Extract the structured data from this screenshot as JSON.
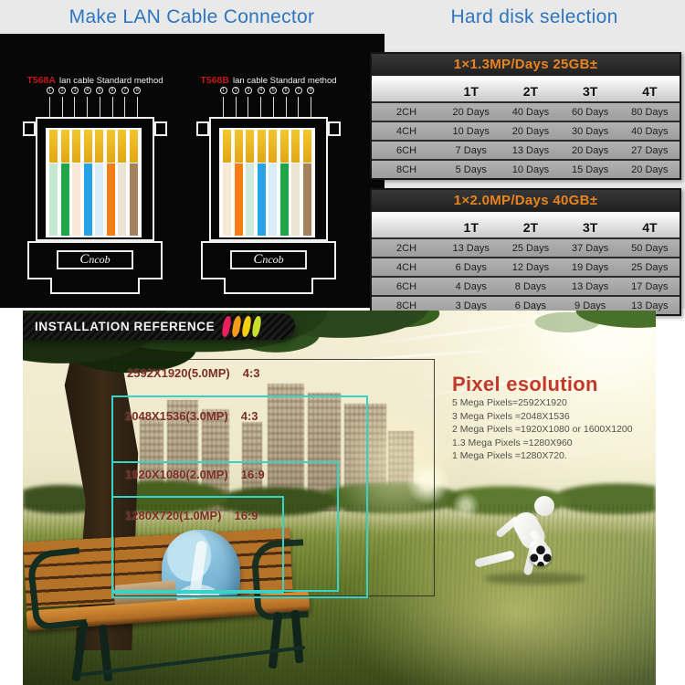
{
  "header": {
    "left_title": "Make LAN Cable Connector",
    "right_title": "Hard disk selection",
    "title_color": "#2e75c0"
  },
  "lan": {
    "connectors": [
      {
        "name": "T568A",
        "method": "lan cable Standard method",
        "logo": "Cncob",
        "pins": [
          "1",
          "2",
          "3",
          "4",
          "5",
          "6",
          "7",
          "8"
        ],
        "wires": [
          {
            "n": "white-green",
            "c": "#c3e8cf"
          },
          {
            "n": "green",
            "c": "#1fa64a"
          },
          {
            "n": "white-orange",
            "c": "#f7e9d6"
          },
          {
            "n": "blue",
            "c": "#27a4e6"
          },
          {
            "n": "white-blue",
            "c": "#d8edf8"
          },
          {
            "n": "orange",
            "c": "#f47d16"
          },
          {
            "n": "white-brown",
            "c": "#ece4d2"
          },
          {
            "n": "brown",
            "c": "#a4825d"
          }
        ]
      },
      {
        "name": "T568B",
        "method": "lan cable Standard method",
        "logo": "Cncob",
        "pins": [
          "1",
          "2",
          "3",
          "4",
          "5",
          "6",
          "7",
          "8"
        ],
        "wires": [
          {
            "n": "white-orange",
            "c": "#f7e9d6"
          },
          {
            "n": "orange",
            "c": "#f47d16"
          },
          {
            "n": "white-green",
            "c": "#cdeadd"
          },
          {
            "n": "blue",
            "c": "#27a4e6"
          },
          {
            "n": "white-blue",
            "c": "#d8edf8"
          },
          {
            "n": "green",
            "c": "#1fa64a"
          },
          {
            "n": "white-brown",
            "c": "#ece4d2"
          },
          {
            "n": "brown",
            "c": "#a4825d"
          }
        ]
      }
    ]
  },
  "tables": [
    {
      "title": "1×1.3MP/Days 25GB±",
      "columns": [
        "1T",
        "2T",
        "3T",
        "4T"
      ],
      "rows": [
        {
          "label": "2CH",
          "values": [
            "20 Days",
            "40 Days",
            "60 Days",
            "80 Days"
          ]
        },
        {
          "label": "4CH",
          "values": [
            "10 Days",
            "20 Days",
            "30 Days",
            "40 Days"
          ]
        },
        {
          "label": "6CH",
          "values": [
            "7 Days",
            "13 Days",
            "20 Days",
            "27 Days"
          ]
        },
        {
          "label": "8CH",
          "values": [
            "5 Days",
            "10 Days",
            "15 Days",
            "20 Days"
          ]
        }
      ]
    },
    {
      "title": "1×2.0MP/Days 40GB±",
      "columns": [
        "1T",
        "2T",
        "3T",
        "4T"
      ],
      "rows": [
        {
          "label": "2CH",
          "values": [
            "13 Days",
            "25 Days",
            "37 Days",
            "50 Days"
          ]
        },
        {
          "label": "4CH",
          "values": [
            "6 Days",
            "12 Days",
            "19 Days",
            "25 Days"
          ]
        },
        {
          "label": "6CH",
          "values": [
            "4 Days",
            "8 Days",
            "13 Days",
            "17 Days"
          ]
        },
        {
          "label": "8CH",
          "values": [
            "3 Days",
            "6 Days",
            "9 Days",
            "13 Days"
          ]
        }
      ]
    }
  ],
  "installation": {
    "banner": "INSTALLATION REFERENCE",
    "chevrons": [
      "#ea1e5e",
      "#f59c17",
      "#f2d011",
      "#c9e02b"
    ],
    "accent_teal": "#38d3c6",
    "label_color": "#7c2d24",
    "overlays": [
      {
        "res": "2592X1920(5.0MP)",
        "ratio": "4:3"
      },
      {
        "res": "2048X1536(3.0MP)",
        "ratio": "4:3"
      },
      {
        "res": "1920X1080(2.0MP)",
        "ratio": "16:9"
      },
      {
        "res": "1280X720(1.0MP)",
        "ratio": "16:9"
      }
    ],
    "pixel_info": {
      "title": "Pixel esolution",
      "lines": [
        "5 Mega Pixels=2592X1920",
        "3 Mega Pixels =2048X1536",
        "2 Mega Pixels =1920X1080 or 1600X1200",
        "1.3 Mega Pixels =1280X960",
        "1 Mega Pixels =1280X720."
      ]
    }
  }
}
